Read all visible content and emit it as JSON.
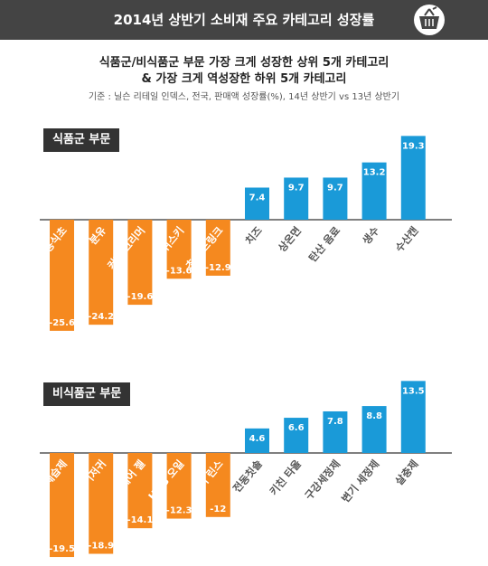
{
  "header": {
    "title": "2014년 상반기 소비재 주요 카테고리 성장률",
    "icon": "shopping-basket-icon"
  },
  "subtitle": {
    "line1": "식품군/비식품군 부문 가장 크게 성장한 상위 5개 카테고리",
    "line2": "& 가장 크게 역성장한 하위 5개 카테고리"
  },
  "basis": "기준 : 닐슨 리테일 인덱스, 전국, 판매액 성장률(%), 14년 상반기 vs 13년 상반기",
  "colors": {
    "positive": "#1a9ad8",
    "negative": "#f5891f",
    "header": "#444444",
    "label_bg": "#333333"
  },
  "chart_data": [
    {
      "type": "bar",
      "title": "식품군 부문",
      "categories": [
        "음용식초",
        "분유",
        "커피 크리머",
        "위스키",
        "초코 드링크",
        "치즈",
        "상온면",
        "탄산 음료",
        "생수",
        "수산캔"
      ],
      "values": [
        -25.6,
        -24.2,
        -19.6,
        -13.6,
        -12.9,
        7.4,
        9.7,
        9.7,
        13.2,
        19.3
      ],
      "value_labels": [
        "-25.6",
        "-24.2",
        "-19.6",
        "-13.6",
        "-12.9",
        "7.4",
        "9.7",
        "9.7",
        "13.2",
        "19.3"
      ]
    },
    {
      "type": "bar",
      "title": "비식품군 부문",
      "categories": [
        "제습제",
        "기저귀",
        "헤어 젤",
        "H&B 오일",
        "헤어 린스",
        "전동칫솔",
        "키친 타올",
        "구강세정제",
        "변기 세정제",
        "살충제"
      ],
      "values": [
        -19.5,
        -18.9,
        -14.1,
        -12.3,
        -12,
        4.6,
        6.6,
        7.8,
        8.8,
        13.5
      ],
      "value_labels": [
        "-19.5",
        "-18.9",
        "-14.1",
        "-12.3",
        "-12",
        "4.6",
        "6.6",
        "7.8",
        "8.8",
        "13.5"
      ]
    }
  ]
}
